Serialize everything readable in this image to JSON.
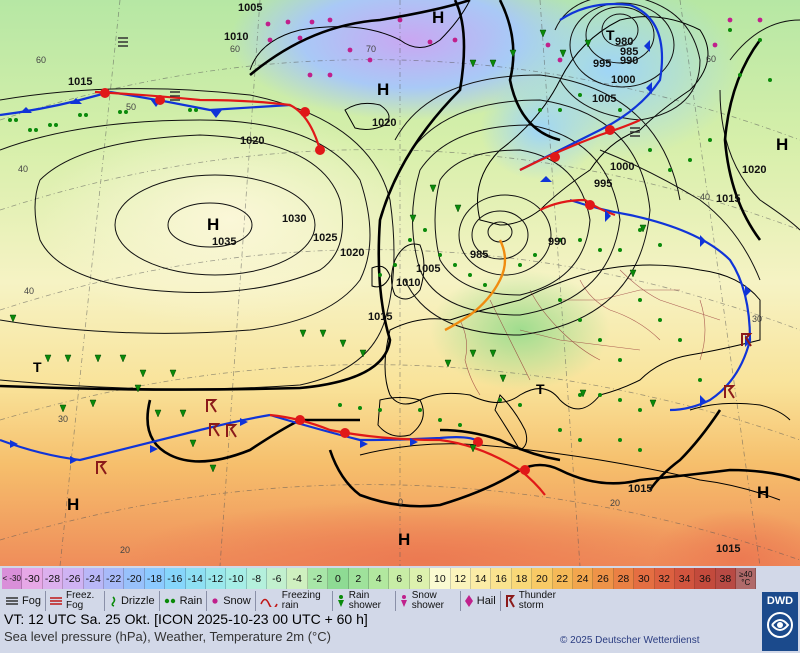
{
  "map": {
    "pressure_systems": [
      {
        "kind": "H",
        "label": "H"
      },
      {
        "kind": "H",
        "label": "H"
      },
      {
        "kind": "H",
        "label": "H"
      },
      {
        "kind": "H",
        "label": "H"
      },
      {
        "kind": "H",
        "label": "H"
      },
      {
        "kind": "H",
        "label": "H"
      },
      {
        "kind": "H",
        "label": "H"
      },
      {
        "kind": "T",
        "label": "T"
      },
      {
        "kind": "T",
        "label": "T"
      },
      {
        "kind": "T",
        "label": "T"
      }
    ],
    "isobar_labels": [
      "1005",
      "1010",
      "1015",
      "1020",
      "1030",
      "1035",
      "1025",
      "1020",
      "1015",
      "1020",
      "1010",
      "1005",
      "985",
      "980",
      "985",
      "990",
      "995",
      "1000",
      "1005",
      "1000",
      "995",
      "990",
      "1020",
      "1015",
      "1015",
      "1015"
    ],
    "temperature_labels": [
      "60",
      "60",
      "50",
      "40",
      "40",
      "30",
      "20",
      "20",
      "0",
      "70",
      "60",
      "40",
      "30"
    ]
  },
  "legend": {
    "scale": [
      "< -30",
      "-30",
      "-28",
      "-26",
      "-24",
      "-22",
      "-20",
      "-18",
      "-16",
      "-14",
      "-12",
      "-10",
      "-8",
      "-6",
      "-4",
      "-2",
      "0",
      "2",
      "4",
      "6",
      "8",
      "10",
      "12",
      "14",
      "16",
      "18",
      "20",
      "22",
      "24",
      "26",
      "28",
      "30",
      "32",
      "34",
      "36",
      "38",
      "≥40 °C"
    ],
    "scale_colors": [
      "#d98fd9",
      "#e7a8e7",
      "#dcb0ee",
      "#cfb3f3",
      "#b9b7f7",
      "#a8baf9",
      "#98c1fb",
      "#8ccaff",
      "#86d6fb",
      "#8ee0f3",
      "#9ae8ec",
      "#a6eee6",
      "#b4f0dc",
      "#c2f0ce",
      "#cff0c0",
      "#a8e6a8",
      "#8edb94",
      "#9fe29b",
      "#b2e89f",
      "#c8eda6",
      "#ddf1ae",
      "#fafad2",
      "#fbf4bc",
      "#fbeca6",
      "#fae38f",
      "#f9d878",
      "#f8ca66",
      "#f5b958",
      "#f2a64e",
      "#ee9348",
      "#ea8044",
      "#e46e42",
      "#dc6040",
      "#d1543e",
      "#c34a3c",
      "#b84a44",
      "#b06a6a"
    ],
    "items": [
      {
        "label": "Fog",
        "icon": "fog-icon"
      },
      {
        "label": "Freez. Fog",
        "icon": "freezing-fog-icon"
      },
      {
        "label": "Drizzle",
        "icon": "drizzle-icon"
      },
      {
        "label": "Rain",
        "icon": "rain-icon"
      },
      {
        "label": "Snow",
        "icon": "snow-icon"
      },
      {
        "label": "Freezing rain",
        "icon": "freezing-rain-icon"
      },
      {
        "label": "Rain shower",
        "icon": "rain-shower-icon"
      },
      {
        "label": "Snow shower",
        "icon": "snow-shower-icon"
      },
      {
        "label": "Hail",
        "icon": "hail-icon"
      },
      {
        "label": "Thunder storm",
        "icon": "thunderstorm-icon"
      }
    ]
  },
  "footer": {
    "valid_time": "VT: 12 UTC Sa.  25 Okt. [ICON 2025-10-23  00 UTC + 60 h]",
    "description": "Sea level pressure (hPa), Weather, Temperature 2m (°C)",
    "copyright": "© 2025 Deutscher Wetterdienst",
    "logo_text": "DWD"
  }
}
